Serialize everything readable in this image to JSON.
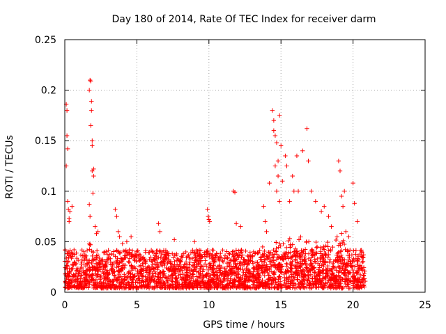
{
  "chart_data": {
    "type": "scatter",
    "title": "Day 180 of 2014, Rate Of TEC Index for receiver darm",
    "xlabel": "GPS time / hours",
    "ylabel": "ROTI / TECUs",
    "xlim": [
      0,
      25
    ],
    "ylim": [
      0,
      0.25
    ],
    "x_ticks": [
      0,
      5,
      10,
      15,
      20,
      25
    ],
    "x_tick_labels": [
      "0",
      "5",
      "10",
      "15",
      "20",
      "25"
    ],
    "y_ticks": [
      0,
      0.05,
      0.1,
      0.15,
      0.2,
      0.25
    ],
    "y_tick_labels": [
      "0",
      "0.05",
      "0.1",
      "0.15",
      "0.2",
      "0.25"
    ],
    "grid": true,
    "marker": "plus",
    "color": "#ff0000",
    "series": [
      {
        "x": [
          0.1,
          0.1,
          0.15,
          0.15,
          0.2,
          0.2,
          0.25,
          0.3,
          0.3,
          0.35,
          0.5,
          1.7,
          1.75,
          1.8,
          1.8,
          1.85,
          1.85,
          1.9,
          1.9,
          1.7,
          1.75,
          1.9,
          1.95,
          2.0,
          2.0,
          2.1,
          2.2,
          2.3,
          3.5,
          3.6,
          3.7,
          3.8,
          4.0,
          4.3,
          4.6,
          6.5,
          6.6,
          7.6,
          9.0,
          9.9,
          9.95,
          10.0,
          10.05,
          11.7,
          11.8,
          11.9,
          12.2,
          13.8,
          13.9,
          14.0,
          14.2,
          14.4,
          14.5,
          14.6,
          14.7,
          14.8,
          14.9,
          15.0,
          15.1,
          14.5,
          14.6,
          14.7,
          14.8,
          14.9,
          15.3,
          15.4,
          15.6,
          15.8,
          15.9,
          16.1,
          16.2,
          16.5,
          16.8,
          16.9,
          17.1,
          17.4,
          17.8,
          18.0,
          18.3,
          18.5,
          19.0,
          19.1,
          19.2,
          19.3,
          19.4,
          19.5,
          19.7,
          20.0,
          20.1,
          20.3,
          20.6
        ],
        "y": [
          0.186,
          0.125,
          0.18,
          0.155,
          0.142,
          0.09,
          0.082,
          0.073,
          0.07,
          0.08,
          0.085,
          0.2,
          0.21,
          0.209,
          0.165,
          0.189,
          0.18,
          0.15,
          0.145,
          0.087,
          0.075,
          0.12,
          0.098,
          0.122,
          0.115,
          0.065,
          0.058,
          0.06,
          0.082,
          0.075,
          0.06,
          0.055,
          0.048,
          0.05,
          0.055,
          0.068,
          0.06,
          0.052,
          0.05,
          0.082,
          0.075,
          0.072,
          0.07,
          0.1,
          0.099,
          0.068,
          0.065,
          0.085,
          0.07,
          0.06,
          0.108,
          0.18,
          0.17,
          0.155,
          0.148,
          0.13,
          0.175,
          0.145,
          0.11,
          0.16,
          0.125,
          0.1,
          0.115,
          0.09,
          0.135,
          0.125,
          0.09,
          0.115,
          0.1,
          0.135,
          0.1,
          0.14,
          0.162,
          0.13,
          0.1,
          0.09,
          0.08,
          0.085,
          0.075,
          0.065,
          0.13,
          0.12,
          0.095,
          0.085,
          0.1,
          0.06,
          0.055,
          0.108,
          0.088,
          0.07,
          0.04
        ]
      }
    ]
  }
}
